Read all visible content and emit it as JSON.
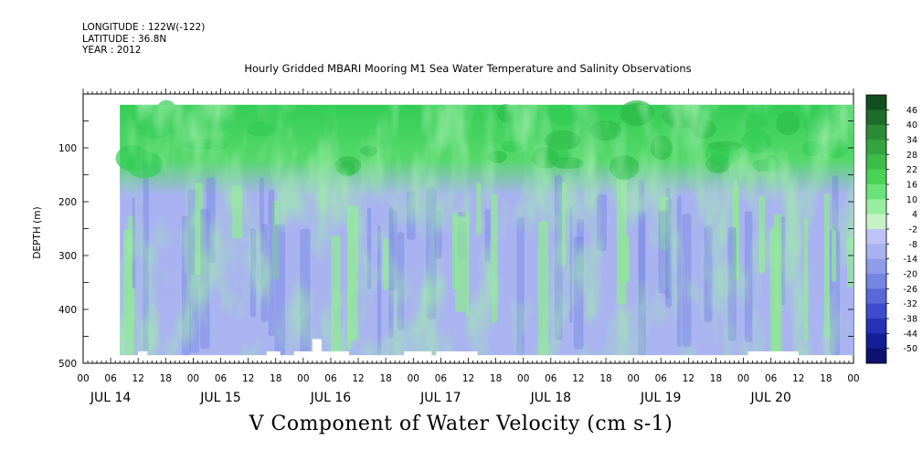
{
  "header": {
    "longitude": "LONGITUDE : 122W(-122)",
    "latitude": "LATITUDE : 36.8N",
    "year": "YEAR : 2012"
  },
  "chart_data": {
    "type": "heatmap",
    "title": "Hourly Gridded MBARI Mooring M1 Sea Water Temperature and Salinity Observations",
    "subtitle": "V Component of Water Velocity (cm s-1)",
    "ylabel": "DEPTH (m)",
    "ylim": [
      500,
      0
    ],
    "y_ticks": [
      100,
      200,
      300,
      400,
      500
    ],
    "x_hour_labels": [
      "00",
      "06",
      "12",
      "18",
      "00",
      "06",
      "12",
      "18",
      "00",
      "06",
      "12",
      "18",
      "00",
      "06",
      "12",
      "18",
      "00",
      "06",
      "12",
      "18",
      "00",
      "06",
      "12",
      "18",
      "00",
      "06",
      "12",
      "18",
      "00"
    ],
    "x_date_labels": [
      "JUL 14",
      "JUL 15",
      "JUL 16",
      "JUL 17",
      "JUL 18",
      "JUL 19",
      "JUL 20"
    ],
    "data_time_range_hours": [
      8,
      168
    ],
    "data_depth_range_m": [
      20,
      485
    ],
    "colorbar": {
      "levels": [
        "46",
        "40",
        "34",
        "28",
        "22",
        "16",
        "10",
        "4",
        "-2",
        "-8",
        "-14",
        "-20",
        "-26",
        "-32",
        "-38",
        "-44",
        "-50"
      ],
      "colors": [
        "#124e1e",
        "#1f6b2a",
        "#2a8a35",
        "#33a43f",
        "#3cbd48",
        "#4ad456",
        "#6ae27a",
        "#98ee9f",
        "#c6f3c6",
        "#bdc3f4",
        "#a8b2f0",
        "#8e9cea",
        "#7585e2",
        "#5868d8",
        "#3d4ccd",
        "#2532b7",
        "#141f95",
        "#0b1270"
      ]
    },
    "field_description_colors": {
      "strong_positive": "#33cc55",
      "positive": "#8fe896",
      "near_zero": "#c6f3c6",
      "negative": "#a8b2f0",
      "strong_negative": "#7585e2"
    }
  }
}
